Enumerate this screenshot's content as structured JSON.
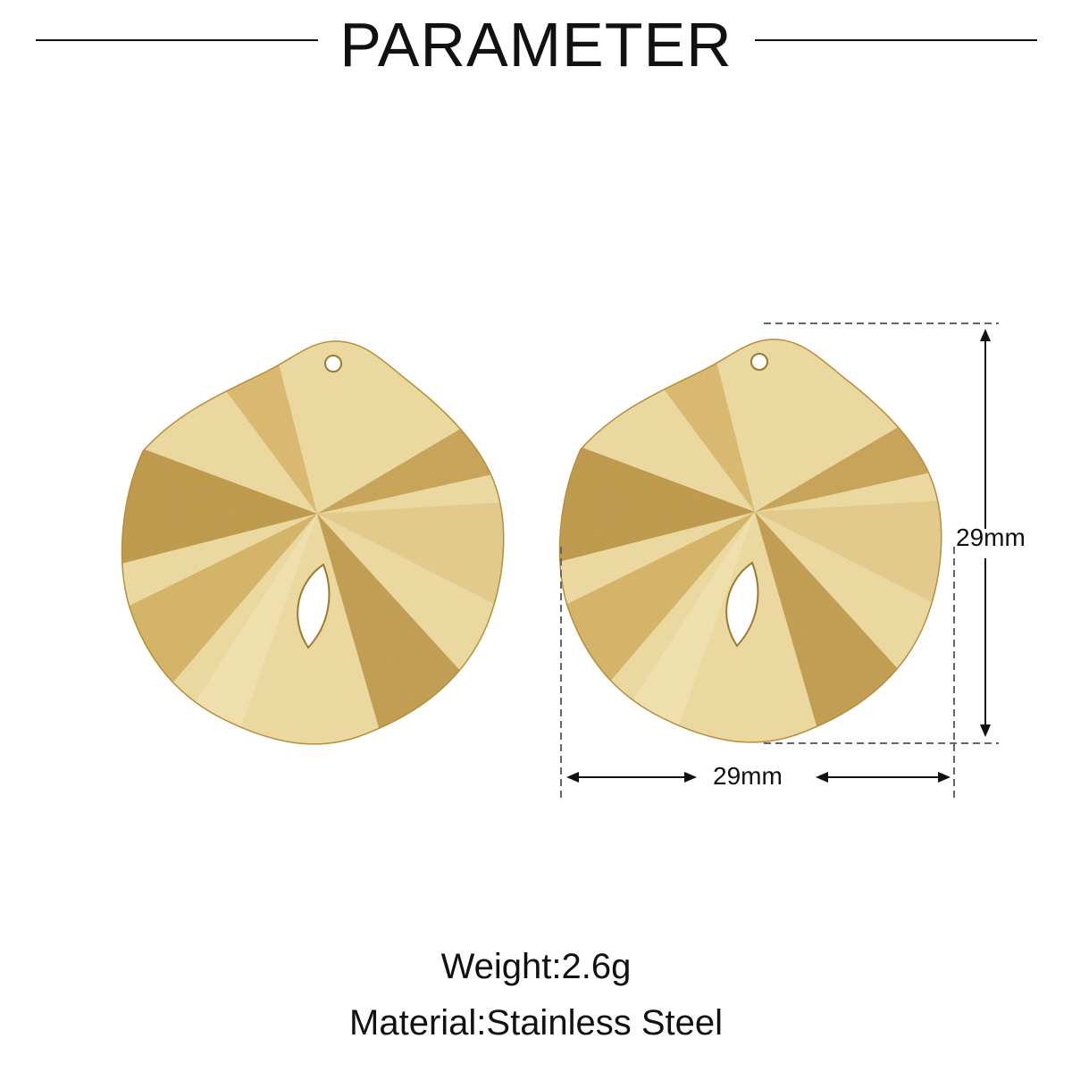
{
  "header": {
    "title": "PARAMETER"
  },
  "dimensions": {
    "height": "29mm",
    "width": "29mm"
  },
  "specs": {
    "weight": "Weight:2.6g",
    "material": "Material:Stainless Steel"
  },
  "colors": {
    "gold_light": "#f1dc9c",
    "gold_dark": "#c9a14c",
    "text": "#111111",
    "guide": "#666666"
  }
}
